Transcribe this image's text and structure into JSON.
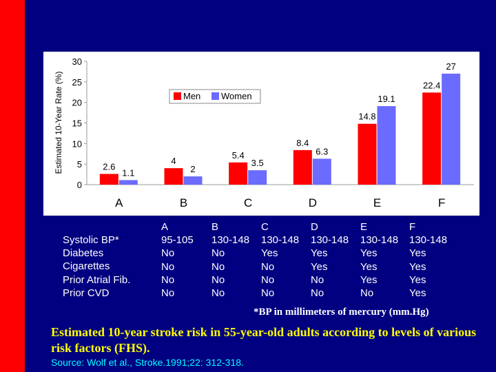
{
  "chart_data": {
    "type": "bar",
    "ylabel": "Estimated 10-Year Rate (%)",
    "ylim": [
      0,
      30
    ],
    "yticks": [
      "0",
      "5",
      "10",
      "15",
      "20",
      "25",
      "30"
    ],
    "categories": [
      "A",
      "B",
      "C",
      "D",
      "E",
      "F"
    ],
    "series": [
      {
        "name": "Men",
        "color": "#ff0000",
        "values": [
          2.6,
          4,
          5.4,
          8.4,
          14.8,
          22.4
        ]
      },
      {
        "name": "Women",
        "color": "#6b6bff",
        "values": [
          1.1,
          2,
          3.5,
          6.3,
          19.1,
          27
        ]
      }
    ],
    "legend": "top-center"
  },
  "table": {
    "row_labels": [
      "Systolic BP*",
      "Diabetes",
      "Cigarettes",
      "Prior Atrial Fib.",
      "Prior CVD"
    ],
    "columns": [
      {
        "header": "A",
        "values": [
          "95-105",
          "No",
          "No",
          "No",
          "No"
        ]
      },
      {
        "header": "B",
        "values": [
          "130-148",
          "No",
          "No",
          "No",
          "No"
        ]
      },
      {
        "header": "C",
        "values": [
          "130-148",
          "Yes",
          "No",
          "No",
          "No"
        ]
      },
      {
        "header": "D",
        "values": [
          "130-148",
          "Yes",
          "Yes",
          "No",
          "No"
        ]
      },
      {
        "header": "E",
        "values": [
          "130-148",
          "Yes",
          "Yes",
          "Yes",
          "No"
        ]
      },
      {
        "header": "F",
        "values": [
          "130-148",
          "Yes",
          "Yes",
          "Yes",
          "Yes"
        ]
      }
    ]
  },
  "footnote": "*BP in millimeters of mercury (mm.Hg)",
  "caption": "Estimated 10-year stroke risk in 55-year-old adults according to levels of various risk factors (FHS).",
  "source": "Source: Wolf et al., Stroke.1991;22: 312-318.",
  "colors": {
    "background": "#000080",
    "accent_bar": "#ff0000",
    "caption": "#ffff00",
    "source": "#00ffff"
  }
}
